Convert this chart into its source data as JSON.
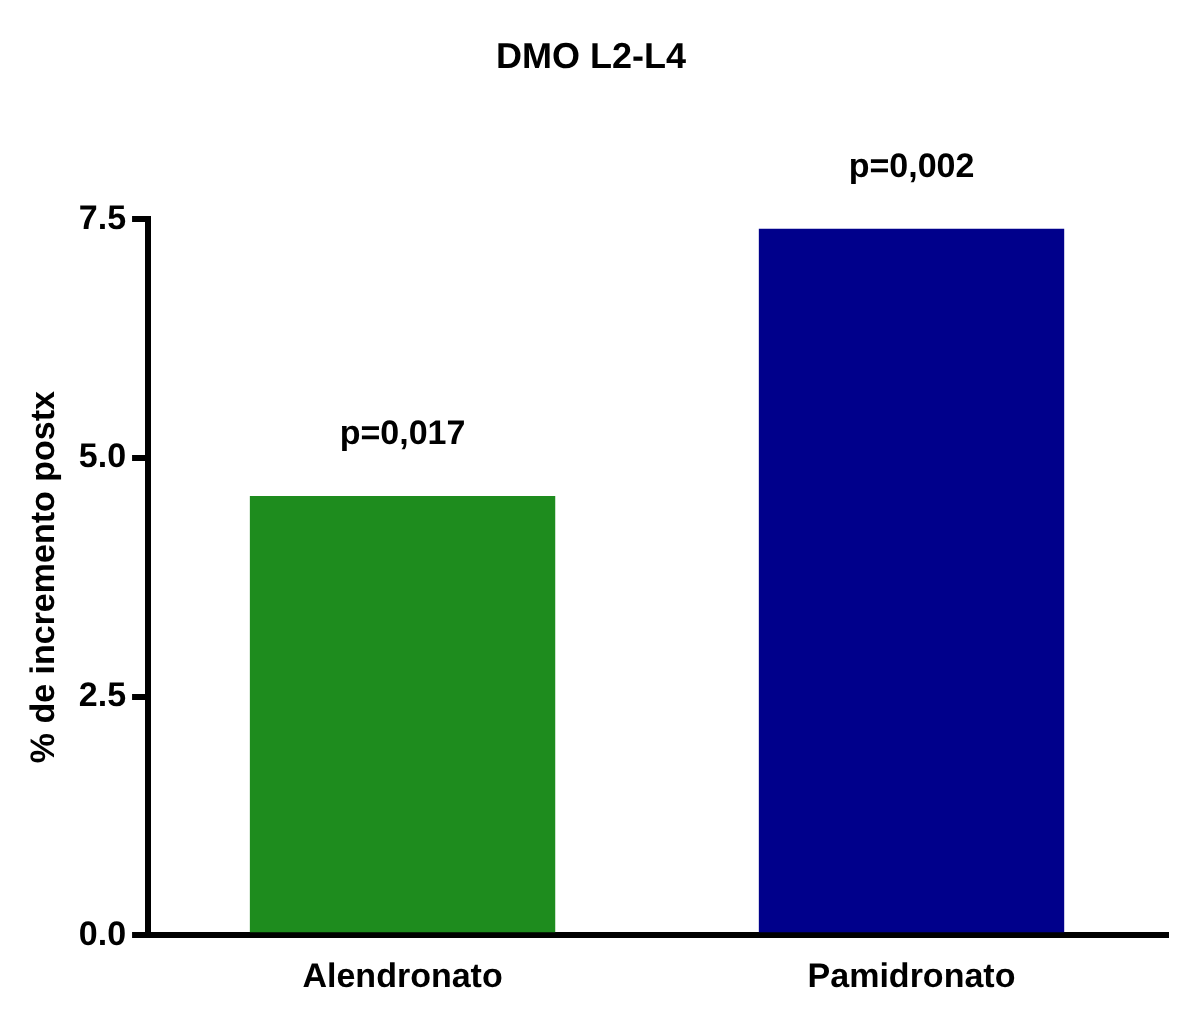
{
  "chart_data": {
    "type": "bar",
    "title": "DMO L2-L4",
    "ylabel": "% de incremento postx",
    "categories": [
      "Alendronato",
      "Pamidronato"
    ],
    "values": [
      4.6,
      7.4
    ],
    "colors": [
      "#1e8c1e",
      "#00008b"
    ],
    "ylim": [
      0,
      7.5
    ],
    "yticks": [
      {
        "value": 0,
        "label": "0.0"
      },
      {
        "value": 2.5,
        "label": "2.5"
      },
      {
        "value": 5,
        "label": "5.0"
      },
      {
        "value": 7.5,
        "label": "7.5"
      }
    ],
    "annotations": [
      {
        "text": "p=0,017",
        "x": "Alendronato",
        "y": 4.6
      },
      {
        "text": "p=0,002",
        "x": "Pamidronato",
        "y": 7.4
      }
    ],
    "grid": false,
    "legend": false
  }
}
